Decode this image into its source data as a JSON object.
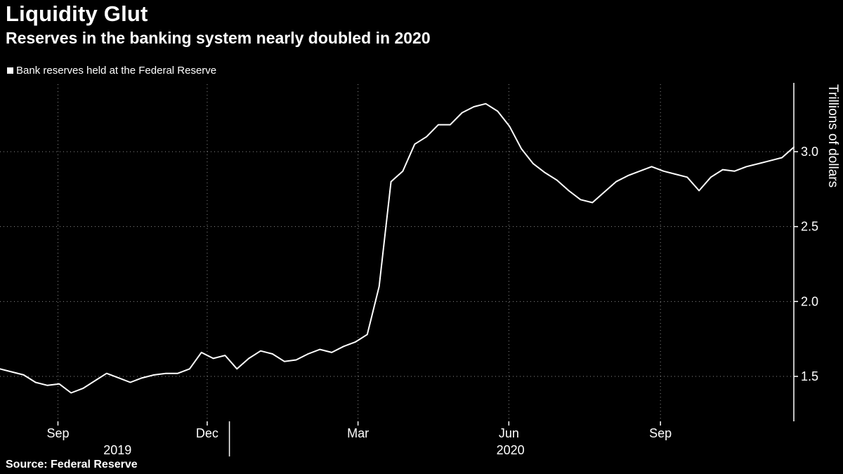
{
  "header": {
    "title": "Liquidity Glut",
    "subtitle": "Reserves in the banking system nearly doubled in 2020"
  },
  "legend": {
    "label": "Bank reserves held at the Federal Reserve",
    "marker_color": "#ffffff"
  },
  "source": "Source: Federal Reserve",
  "colors": {
    "background": "#000000",
    "line": "#ffffff",
    "grid": "#ffffff",
    "text": "#ffffff"
  },
  "chart_data": {
    "type": "line",
    "title": "Liquidity Glut",
    "subtitle": "Reserves in the banking system nearly doubled in 2020",
    "ylabel": "Trillions of dollars",
    "ylim": [
      1.2,
      3.45
    ],
    "yticks": [
      1.5,
      2.0,
      2.5,
      3.0
    ],
    "ytick_labels": [
      "1.5",
      "2.0",
      "2.5",
      "3.0"
    ],
    "grid": "dotted",
    "legend_position": "top-left",
    "xticks": [
      {
        "label": "Sep",
        "t": 0.073
      },
      {
        "label": "Dec",
        "t": 0.261
      },
      {
        "label": "Mar",
        "t": 0.451
      },
      {
        "label": "Jun",
        "t": 0.641
      },
      {
        "label": "Sep",
        "t": 0.832
      }
    ],
    "year_labels": [
      {
        "label": "2019",
        "t": 0.148
      },
      {
        "label": "2020",
        "t": 0.643
      }
    ],
    "year_separator_t": 0.289,
    "x_unit": "weekly, mid-Aug 2019 to late Nov 2020",
    "series": [
      {
        "name": "Bank reserves held at the Federal Reserve",
        "color": "#ffffff",
        "values": [
          1.55,
          1.53,
          1.51,
          1.46,
          1.44,
          1.45,
          1.39,
          1.42,
          1.47,
          1.52,
          1.49,
          1.46,
          1.49,
          1.51,
          1.52,
          1.52,
          1.55,
          1.66,
          1.62,
          1.64,
          1.55,
          1.62,
          1.67,
          1.65,
          1.6,
          1.61,
          1.65,
          1.68,
          1.66,
          1.7,
          1.73,
          1.78,
          2.1,
          2.8,
          2.87,
          3.05,
          3.1,
          3.18,
          3.18,
          3.26,
          3.3,
          3.32,
          3.27,
          3.17,
          3.02,
          2.92,
          2.86,
          2.81,
          2.74,
          2.68,
          2.66,
          2.73,
          2.8,
          2.84,
          2.87,
          2.9,
          2.87,
          2.85,
          2.83,
          2.74,
          2.83,
          2.88,
          2.87,
          2.9,
          2.92,
          2.94,
          2.96,
          3.03
        ]
      }
    ]
  }
}
